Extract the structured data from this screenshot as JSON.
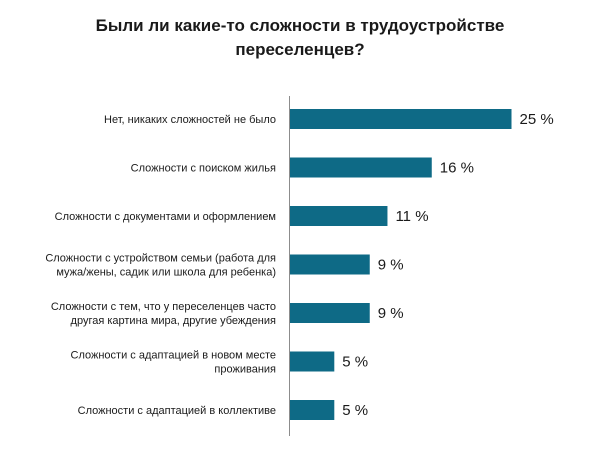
{
  "chart_data": {
    "type": "bar",
    "orientation": "horizontal",
    "title_lines": [
      "Были ли какие-то сложности в трудоустройстве",
      "переселенцев?"
    ],
    "categories": [
      [
        "Нет, никаких сложностей не было"
      ],
      [
        "Сложности с поиском жилья"
      ],
      [
        "Сложности с документами и оформлением"
      ],
      [
        "Сложности с устройством семьи (работа для",
        "мужа/жены, садик или школа для ребенка)"
      ],
      [
        "Сложности с тем, что у переселенцев часто",
        "другая картина мира, другие убеждения"
      ],
      [
        "Сложности с адаптацией в новом месте",
        "проживания"
      ],
      [
        "Сложности с адаптацией в коллективе"
      ]
    ],
    "values": [
      25,
      16,
      11,
      9,
      9,
      5,
      5
    ],
    "value_labels": [
      "25 %",
      "16 %",
      "11 %",
      "9 %",
      "9 %",
      "5 %",
      "5 %"
    ],
    "unit": "%",
    "bar_color": "#0e6a86",
    "axis_color": "#8c8c8c",
    "grid": false,
    "legend": "none"
  }
}
